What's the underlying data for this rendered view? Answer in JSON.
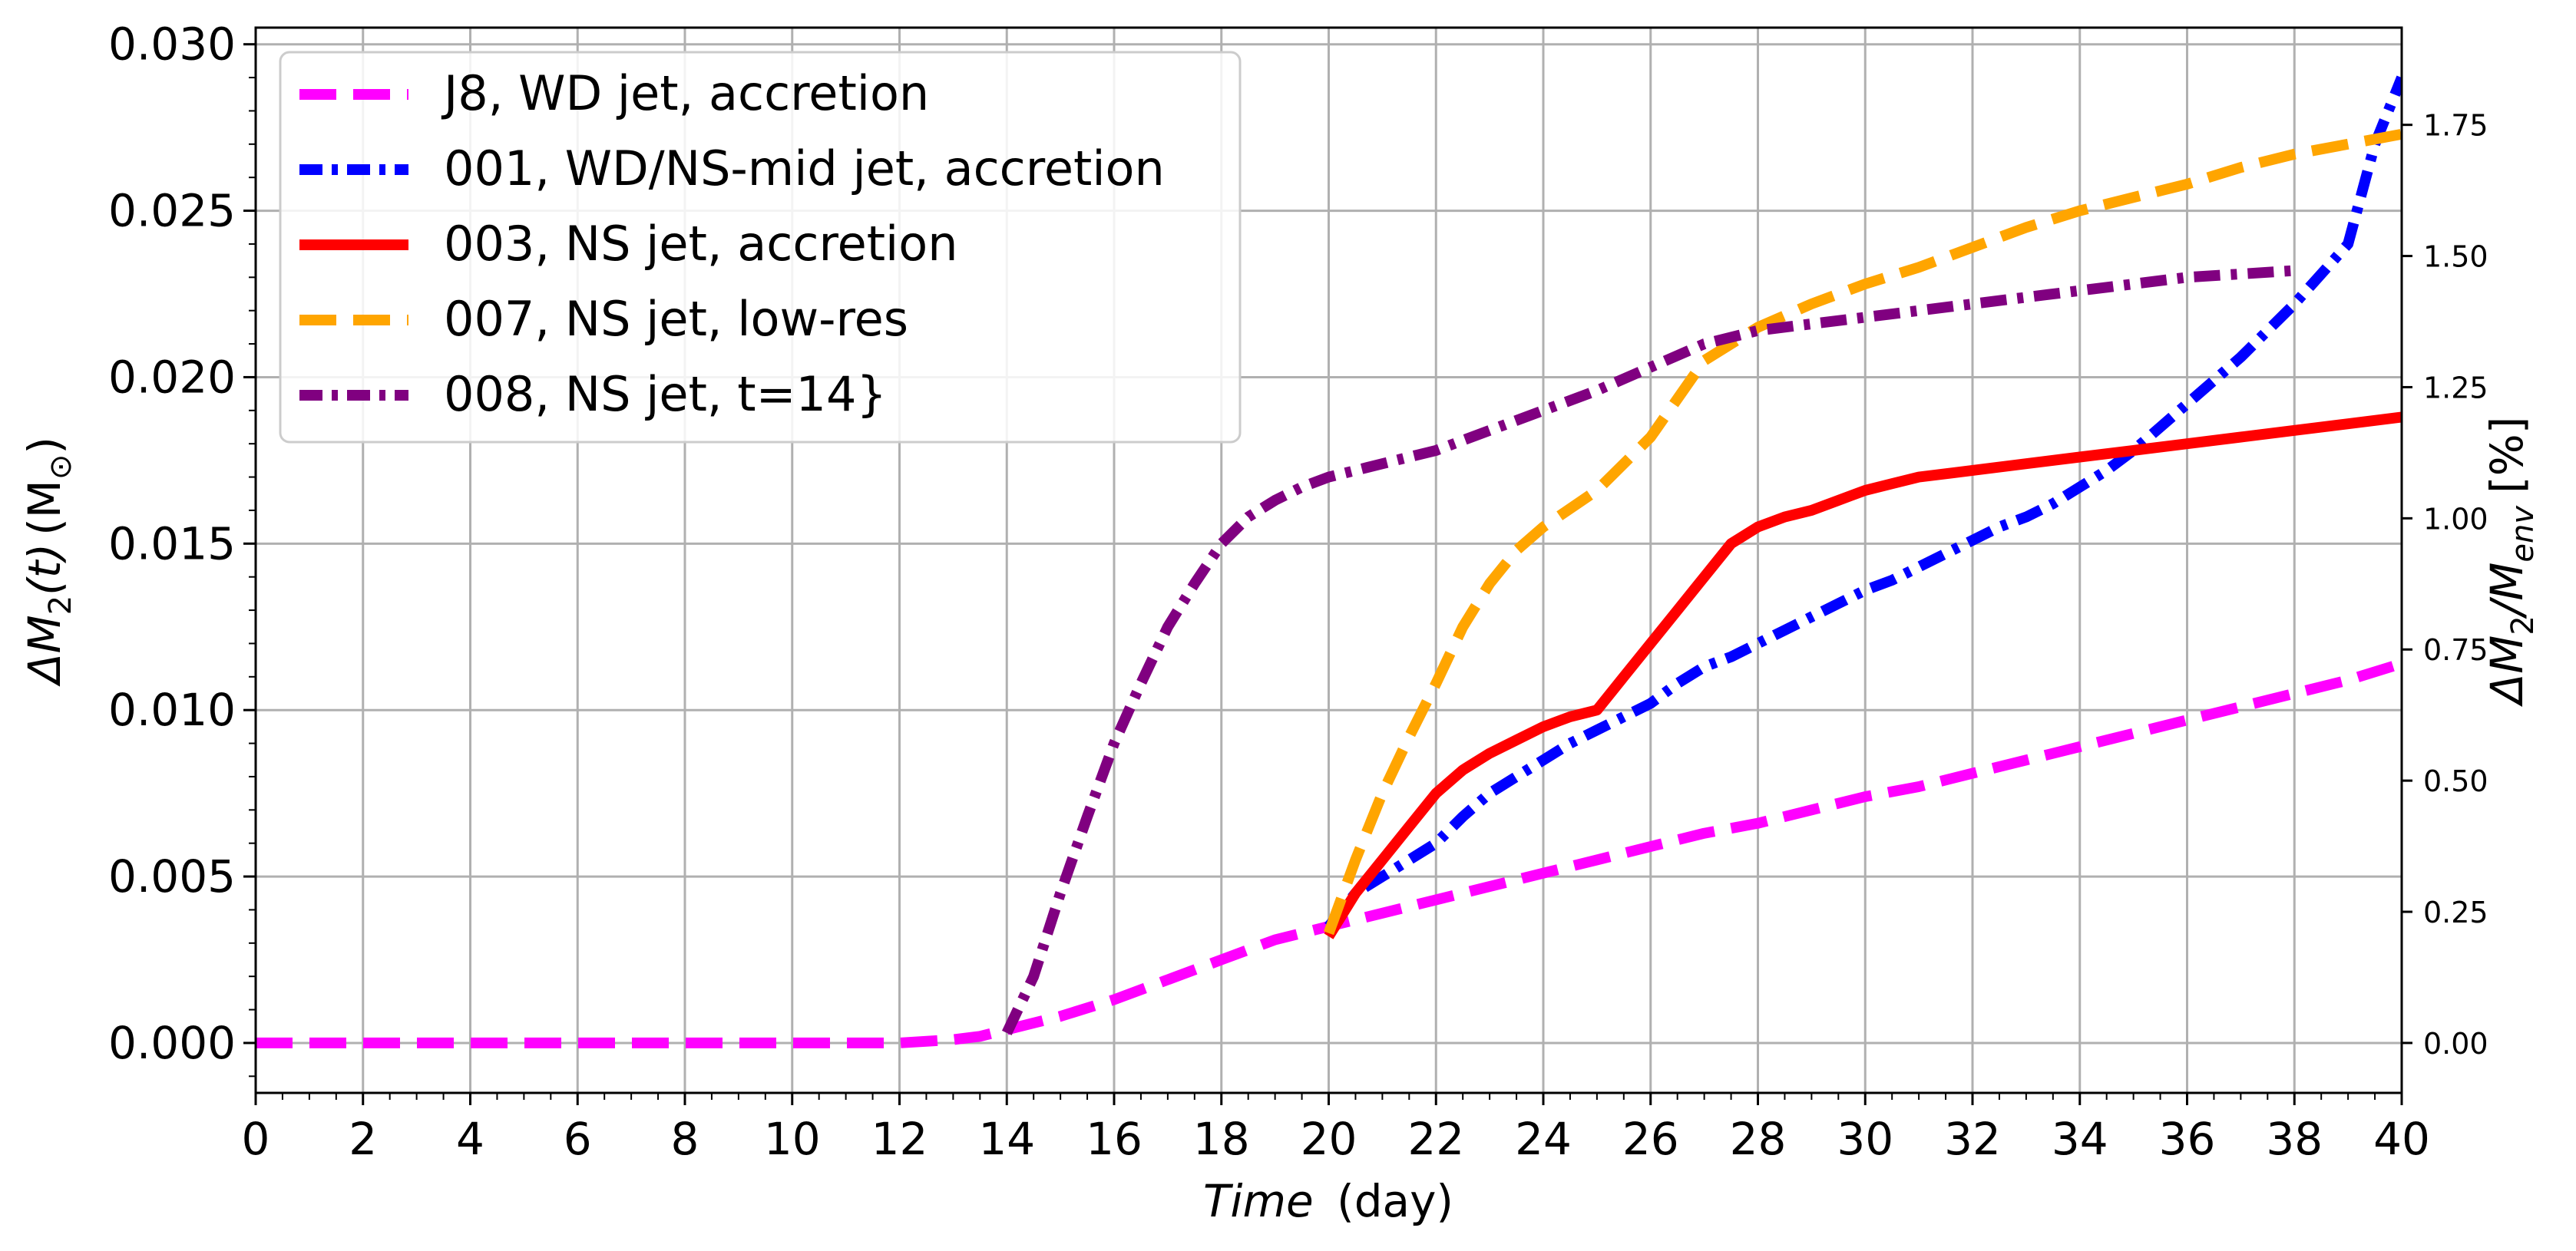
{
  "chart_data": {
    "type": "line",
    "xlabel": {
      "italic": "Time",
      "normal": "(day)"
    },
    "ylabel_left": "ΔM2(t) (M⊙)",
    "ylabel_right": "ΔM2/Menv  [%]",
    "xlim": [
      0,
      40
    ],
    "ylim": [
      -0.0015,
      0.0305
    ],
    "y2lim": [
      -0.0952,
      1.9353
    ],
    "xticks": [
      0,
      2,
      4,
      6,
      8,
      10,
      12,
      14,
      16,
      18,
      20,
      22,
      24,
      26,
      28,
      30,
      32,
      34,
      36,
      38,
      40
    ],
    "xtick_labels": [
      "0",
      "2",
      "4",
      "6",
      "8",
      "10",
      "12",
      "14",
      "16",
      "18",
      "20",
      "22",
      "24",
      "26",
      "28",
      "30",
      "32",
      "34",
      "36",
      "38",
      "40"
    ],
    "yticks": [
      0.0,
      0.005,
      0.01,
      0.015,
      0.02,
      0.025,
      0.03
    ],
    "ytick_labels": [
      "0.000",
      "0.005",
      "0.010",
      "0.015",
      "0.020",
      "0.025",
      "0.030"
    ],
    "y2ticks": [
      0.0,
      0.25,
      0.5,
      0.75,
      1.0,
      1.25,
      1.5,
      1.75
    ],
    "y2tick_labels": [
      "0.00",
      "0.25",
      "0.50",
      "0.75",
      "1.00",
      "1.25",
      "1.50",
      "1.75"
    ],
    "grid": true,
    "legend_position": "top-left",
    "series": [
      {
        "name": "J8, WD jet, accretion",
        "color": "#ff00ff",
        "style": "dashed",
        "x": [
          0,
          2,
          4,
          6,
          8,
          10,
          12,
          13,
          13.5,
          14,
          15,
          16,
          17,
          18,
          19,
          20,
          21,
          22,
          23,
          24,
          25,
          26,
          27,
          28,
          29,
          30,
          31,
          32,
          33,
          34,
          35,
          36,
          37,
          38,
          39,
          40
        ],
        "y": [
          0,
          0,
          0,
          0,
          0,
          0,
          0,
          0.0001,
          0.0002,
          0.0004,
          0.0008,
          0.0013,
          0.0019,
          0.0025,
          0.0031,
          0.0035,
          0.0039,
          0.0043,
          0.0047,
          0.0051,
          0.0055,
          0.0059,
          0.0063,
          0.0066,
          0.007,
          0.0074,
          0.0077,
          0.0081,
          0.0085,
          0.0089,
          0.0093,
          0.0097,
          0.0101,
          0.0105,
          0.0109,
          0.0114
        ]
      },
      {
        "name": "001, WD/NS-mid jet, accretion",
        "color": "#0000ff",
        "style": "dashdot",
        "x": [
          20,
          20.5,
          21,
          21.5,
          22,
          22.5,
          23,
          23.5,
          24,
          24.5,
          25,
          25.5,
          26,
          26.5,
          27,
          27.5,
          28,
          28.5,
          29,
          29.5,
          30,
          30.5,
          31,
          31.5,
          32,
          32.5,
          33,
          33.5,
          34,
          34.5,
          35,
          35.5,
          36,
          36.5,
          37,
          37.5,
          38,
          38.5,
          39,
          39.5,
          40
        ],
        "y": [
          0.0035,
          0.0045,
          0.005,
          0.0055,
          0.006,
          0.0068,
          0.0075,
          0.008,
          0.0085,
          0.009,
          0.0094,
          0.0098,
          0.0102,
          0.0108,
          0.0113,
          0.0116,
          0.012,
          0.0124,
          0.0128,
          0.0132,
          0.0136,
          0.0139,
          0.0143,
          0.0147,
          0.0151,
          0.0155,
          0.0158,
          0.0162,
          0.0167,
          0.0172,
          0.0178,
          0.0185,
          0.0192,
          0.0199,
          0.0206,
          0.0214,
          0.0222,
          0.0231,
          0.024,
          0.027,
          0.029
        ]
      },
      {
        "name": "003, NS jet, accretion",
        "color": "#ff0000",
        "style": "solid",
        "x": [
          20,
          20.5,
          21,
          21.5,
          22,
          22.5,
          23,
          23.5,
          24,
          24.5,
          25,
          25.5,
          26,
          26.5,
          27,
          27.5,
          28,
          28.5,
          29,
          29.5,
          30,
          30.5,
          31,
          32,
          33,
          34,
          35,
          36,
          37,
          38,
          39,
          40
        ],
        "y": [
          0.0032,
          0.0045,
          0.0055,
          0.0065,
          0.0075,
          0.0082,
          0.0087,
          0.0091,
          0.0095,
          0.0098,
          0.01,
          0.011,
          0.012,
          0.013,
          0.014,
          0.015,
          0.0155,
          0.0158,
          0.016,
          0.0163,
          0.0166,
          0.0168,
          0.017,
          0.0172,
          0.0174,
          0.0176,
          0.0178,
          0.018,
          0.0182,
          0.0184,
          0.0186,
          0.0188
        ]
      },
      {
        "name": "007, NS jet, low-res",
        "color": "#ffa500",
        "style": "dashed",
        "x": [
          20,
          20.5,
          21,
          21.5,
          22,
          22.5,
          23,
          23.5,
          24,
          25,
          26,
          27,
          28,
          29,
          30,
          31,
          32,
          33,
          34,
          35,
          36,
          37,
          38,
          39,
          40
        ],
        "y": [
          0.0033,
          0.0055,
          0.0075,
          0.0092,
          0.0108,
          0.0125,
          0.0138,
          0.0148,
          0.0155,
          0.0166,
          0.0182,
          0.0205,
          0.0215,
          0.0222,
          0.0228,
          0.0233,
          0.0239,
          0.0245,
          0.025,
          0.0254,
          0.0258,
          0.0263,
          0.0267,
          0.027,
          0.0273
        ]
      },
      {
        "name": "008, NS jet, t=14}",
        "color": "#800080",
        "style": "dashdot",
        "x": [
          14,
          14.5,
          15,
          15.5,
          16,
          16.5,
          17,
          17.5,
          18,
          18.5,
          19,
          19.5,
          20,
          20.5,
          21,
          21.5,
          22,
          22.5,
          23,
          23.5,
          24,
          25,
          26,
          27,
          28,
          29,
          30,
          31,
          32,
          33,
          34,
          35,
          36,
          37,
          38
        ],
        "y": [
          0.0003,
          0.002,
          0.0045,
          0.0068,
          0.009,
          0.0108,
          0.0125,
          0.0138,
          0.015,
          0.0158,
          0.0163,
          0.0167,
          0.017,
          0.0172,
          0.0174,
          0.0176,
          0.0178,
          0.0181,
          0.0184,
          0.0187,
          0.019,
          0.0196,
          0.0203,
          0.021,
          0.0214,
          0.0216,
          0.0218,
          0.022,
          0.0222,
          0.0224,
          0.0226,
          0.0228,
          0.023,
          0.0231,
          0.0232
        ]
      }
    ]
  }
}
